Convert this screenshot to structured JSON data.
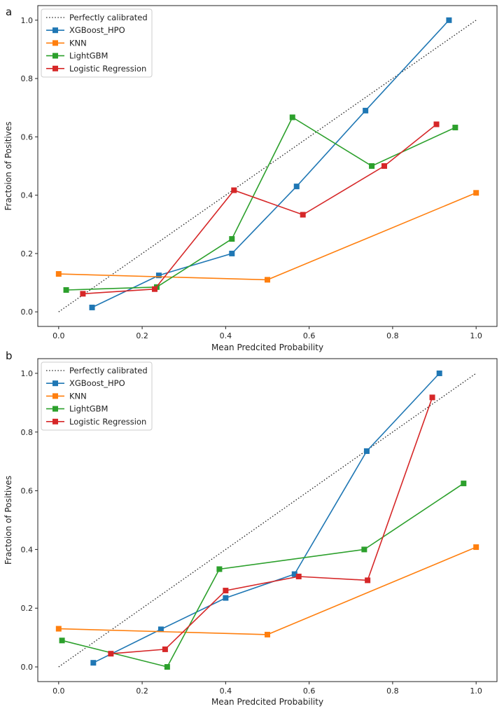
{
  "chart_data": [
    {
      "panel": "a",
      "type": "line",
      "xlabel": "Mean Predcited Probability",
      "ylabel": "Fractoion of Positives",
      "xlim": [
        -0.05,
        1.05
      ],
      "ylim": [
        -0.05,
        1.05
      ],
      "xticks": [
        0.0,
        0.2,
        0.4,
        0.6,
        0.8,
        1.0
      ],
      "yticks": [
        0.0,
        0.2,
        0.4,
        0.6,
        0.8,
        1.0
      ],
      "xtick_labels": [
        "0.0",
        "0.2",
        "0.4",
        "0.6",
        "0.8",
        "1.0"
      ],
      "ytick_labels": [
        "0.0",
        "0.2",
        "0.4",
        "0.6",
        "0.8",
        "1.0"
      ],
      "grid": false,
      "legend_position": "top-left",
      "reference": {
        "name": "Perfectly calibrated",
        "x": [
          0,
          1
        ],
        "y": [
          0,
          1
        ],
        "style": "dotted",
        "color": "#222222"
      },
      "series": [
        {
          "name": "XGBoost_HPO",
          "color": "#1f77b4",
          "x": [
            0.08,
            0.24,
            0.415,
            0.57,
            0.735,
            0.935
          ],
          "y": [
            0.015,
            0.125,
            0.2,
            0.43,
            0.69,
            1.0
          ]
        },
        {
          "name": "KNN",
          "color": "#ff7f0e",
          "x": [
            0.0,
            0.5,
            1.0
          ],
          "y": [
            0.13,
            0.11,
            0.408
          ]
        },
        {
          "name": "LightGBM",
          "color": "#2ca02c",
          "x": [
            0.018,
            0.235,
            0.415,
            0.56,
            0.75,
            0.95
          ],
          "y": [
            0.075,
            0.085,
            0.25,
            0.667,
            0.5,
            0.632
          ]
        },
        {
          "name": "Logistic Regression",
          "color": "#d62728",
          "x": [
            0.058,
            0.23,
            0.42,
            0.585,
            0.78,
            0.905
          ],
          "y": [
            0.062,
            0.078,
            0.417,
            0.333,
            0.5,
            0.643
          ]
        }
      ]
    },
    {
      "panel": "b",
      "type": "line",
      "xlabel": "Mean Predcited Probability",
      "ylabel": "Fractoion of Positives",
      "xlim": [
        -0.05,
        1.05
      ],
      "ylim": [
        -0.05,
        1.05
      ],
      "xticks": [
        0.0,
        0.2,
        0.4,
        0.6,
        0.8,
        1.0
      ],
      "yticks": [
        0.0,
        0.2,
        0.4,
        0.6,
        0.8,
        1.0
      ],
      "xtick_labels": [
        "0.0",
        "0.2",
        "0.4",
        "0.6",
        "0.8",
        "1.0"
      ],
      "ytick_labels": [
        "0.0",
        "0.2",
        "0.4",
        "0.6",
        "0.8",
        "1.0"
      ],
      "grid": false,
      "legend_position": "top-left",
      "reference": {
        "name": "Perfectly calibrated",
        "x": [
          0,
          1
        ],
        "y": [
          0,
          1
        ],
        "style": "dotted",
        "color": "#222222"
      },
      "series": [
        {
          "name": "XGBoost_HPO",
          "color": "#1f77b4",
          "x": [
            0.083,
            0.245,
            0.4,
            0.565,
            0.738,
            0.912
          ],
          "y": [
            0.014,
            0.128,
            0.235,
            0.316,
            0.735,
            1.0
          ]
        },
        {
          "name": "KNN",
          "color": "#ff7f0e",
          "x": [
            0.0,
            0.5,
            1.0
          ],
          "y": [
            0.13,
            0.11,
            0.408
          ]
        },
        {
          "name": "LightGBM",
          "color": "#2ca02c",
          "x": [
            0.008,
            0.26,
            0.385,
            0.732,
            0.97
          ],
          "y": [
            0.09,
            0.0,
            0.333,
            0.4,
            0.625
          ]
        },
        {
          "name": "Logistic Regression",
          "color": "#d62728",
          "x": [
            0.125,
            0.255,
            0.4,
            0.575,
            0.74,
            0.895
          ],
          "y": [
            0.045,
            0.06,
            0.26,
            0.308,
            0.295,
            0.918
          ]
        }
      ]
    }
  ]
}
